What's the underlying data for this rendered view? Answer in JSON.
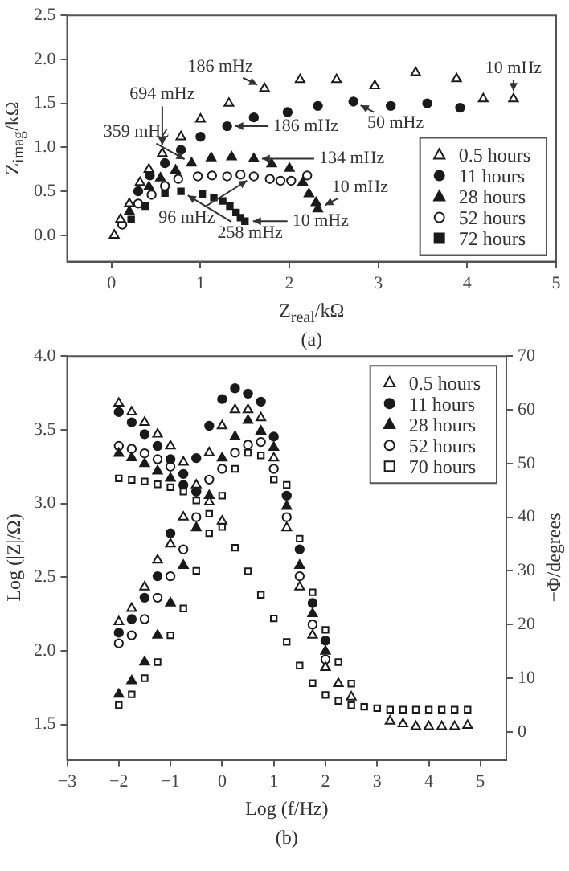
{
  "chart_data": [
    {
      "type": "scatter",
      "xlabel": "Z$_{real}$/kΩ",
      "ylabel": "Z$_{imag}$/kΩ",
      "legend": "bottom right",
      "xlim": [
        -0.5,
        5
      ],
      "xticks": [
        0,
        1,
        2,
        3,
        4,
        5
      ],
      "ylim": [
        -0.3,
        2.5
      ],
      "yticks": [
        {
          "value": 0,
          "label": "0.0"
        },
        {
          "value": 0.5,
          "label": "0.5"
        },
        {
          "value": 1,
          "label": "1.0"
        },
        {
          "value": 1.5,
          "label": "1.5"
        },
        {
          "value": 2,
          "label": "2.0"
        },
        {
          "value": 2.5,
          "label": "2.5"
        }
      ],
      "series": [
        {
          "name": "0.5 hours",
          "color": "#ffffff",
          "marker": "triangle",
          "x": [
            0.03,
            0.1,
            0.2,
            0.32,
            0.42,
            0.57,
            0.78,
            1.0,
            1.32,
            1.72,
            2.12,
            2.53,
            2.96,
            3.42,
            3.88,
            4.18,
            4.52
          ],
          "values": [
            0,
            0.18,
            0.36,
            0.6,
            0.75,
            0.93,
            1.12,
            1.32,
            1.5,
            1.67,
            1.77,
            1.77,
            1.7,
            1.85,
            1.78,
            1.55,
            1.55
          ]
        },
        {
          "name": "11 hours",
          "color": "#1a1a1a",
          "marker": "circle",
          "x": [
            0.3,
            0.43,
            0.6,
            0.78,
            1.0,
            1.3,
            1.6,
            1.98,
            2.32,
            2.72,
            3.14,
            3.55,
            3.92
          ],
          "values": [
            0.5,
            0.68,
            0.82,
            0.97,
            1.12,
            1.24,
            1.34,
            1.4,
            1.47,
            1.52,
            1.47,
            1.5,
            1.45
          ]
        },
        {
          "name": "28 hours",
          "color": "#1a1a1a",
          "marker": "triangle",
          "x": [
            0.2,
            0.42,
            0.55,
            0.72,
            0.9,
            1.12,
            1.35,
            1.6,
            1.8,
            2.0,
            2.15,
            2.22,
            2.3,
            2.32
          ],
          "values": [
            0.27,
            0.55,
            0.65,
            0.74,
            0.82,
            0.88,
            0.89,
            0.87,
            0.81,
            0.76,
            0.6,
            0.47,
            0.37,
            0.3
          ]
        },
        {
          "name": "52 hours",
          "color": "#ffffff",
          "marker": "circle",
          "x": [
            0.12,
            0.3,
            0.45,
            0.6,
            0.75,
            0.97,
            1.13,
            1.3,
            1.45,
            1.6,
            1.78,
            1.9,
            2.02,
            2.2
          ],
          "values": [
            0.12,
            0.36,
            0.46,
            0.56,
            0.64,
            0.67,
            0.68,
            0.67,
            0.69,
            0.67,
            0.64,
            0.62,
            0.62,
            0.68
          ]
        },
        {
          "name": "72 hours",
          "color": "#1a1a1a",
          "marker": "square",
          "x": [
            0.22,
            0.38,
            0.6,
            0.78,
            1.02,
            1.15,
            1.25,
            1.33,
            1.4,
            1.45,
            1.5
          ],
          "values": [
            0.18,
            0.33,
            0.48,
            0.5,
            0.47,
            0.43,
            0.39,
            0.33,
            0.26,
            0.2,
            0.16
          ]
        }
      ],
      "annotations": [
        {
          "text": "186 mHz",
          "x": 1.72,
          "y": 1.67
        },
        {
          "text": "10 mHz",
          "x": 4.52,
          "y": 1.55
        },
        {
          "text": "359 mHz",
          "x": 0.9,
          "y": 0.82
        },
        {
          "text": "694 mHz",
          "x": 0.57,
          "y": 0.93
        },
        {
          "text": "186 mHz",
          "x": 1.3,
          "y": 1.24
        },
        {
          "text": "134 mHz",
          "x": 1.6,
          "y": 0.87
        },
        {
          "text": "50 mHz",
          "x": 2.72,
          "y": 1.52
        },
        {
          "text": "96 mHz",
          "x": 1.6,
          "y": 0.67
        },
        {
          "text": "258 mHz",
          "x": 0.78,
          "y": 0.5
        },
        {
          "text": "10 mHz",
          "x": 1.5,
          "y": 0.16
        },
        {
          "text": "10 mHz",
          "x": 2.32,
          "y": 0.3
        },
        "(a)"
      ]
    },
    {
      "type": "scatter",
      "xlabel": "Log (f/Hz)",
      "ylabel": "Log (|Z|/Ω)",
      "y2label": "−Φ/degrees",
      "legend": "top right",
      "xlim": [
        -3,
        5.5
      ],
      "xticks": [
        {
          "value": -3,
          "label": "−3"
        },
        {
          "value": -2,
          "label": "−2"
        },
        {
          "value": -1,
          "label": "−1"
        },
        0,
        1,
        2,
        3,
        4,
        5
      ],
      "ylim": [
        1.26,
        4.0
      ],
      "yticks": [
        1.5,
        {
          "value": 2,
          "label": "2.0"
        },
        2.5,
        {
          "value": 3,
          "label": "3.0"
        },
        3.5,
        {
          "value": 4,
          "label": "4.0"
        }
      ],
      "y2lim": [
        -5.2,
        70
      ],
      "y2ticks": [
        0,
        10,
        20,
        30,
        40,
        50,
        60,
        70
      ],
      "x": [
        -2,
        -1.75,
        -1.5,
        -1.25,
        -1,
        -0.75,
        -0.5,
        -0.25,
        0,
        0.25,
        0.5,
        0.75,
        1,
        1.25,
        1.5,
        1.75,
        2,
        2.25,
        2.5,
        2.75,
        3,
        3.25,
        3.5,
        3.75,
        4,
        4.25,
        4.5,
        4.75
      ],
      "series": [
        {
          "name": "0.5 hours",
          "color": "#ffffff",
          "marker": "triangle",
          "values": [
            3.68,
            3.62,
            3.55,
            3.47,
            3.39,
            3.28,
            null,
            3.01,
            2.88,
            null,
            null,
            null,
            null,
            null,
            null,
            null,
            null,
            null,
            null,
            null,
            null,
            null,
            null,
            null,
            null,
            null,
            null,
            null
          ]
        },
        {
          "name": "11 hours",
          "color": "#1a1a1a",
          "marker": "circle",
          "values": [
            3.62,
            3.55,
            3.47,
            3.39,
            3.3,
            3.2,
            3.08,
            null,
            null,
            null,
            null,
            null,
            null,
            null,
            null,
            null,
            null,
            null,
            null,
            null,
            null,
            null,
            null,
            null,
            null,
            null,
            null,
            null
          ]
        },
        {
          "name": "28 hours",
          "color": "#1a1a1a",
          "marker": "triangle",
          "values": [
            3.34,
            3.31,
            3.27,
            3.22,
            3.17,
            null,
            null,
            null,
            null,
            null,
            null,
            null,
            null,
            null,
            null,
            null,
            null,
            null,
            null,
            null,
            null,
            null,
            null,
            null,
            null,
            null,
            null,
            null
          ]
        },
        {
          "name": "52 hours",
          "color": "#ffffff",
          "marker": "circle",
          "values": [
            3.39,
            3.37,
            3.34,
            3.3,
            3.25,
            null,
            null,
            null,
            null,
            null,
            null,
            null,
            null,
            null,
            null,
            null,
            null,
            null,
            null,
            null,
            null,
            null,
            null,
            null,
            null,
            null,
            null,
            null
          ]
        },
        {
          "name": "70 hours",
          "color": "#ffffff",
          "marker": "square",
          "values": [
            3.17,
            3.16,
            3.15,
            3.13,
            3.11,
            3.08,
            3.02,
            2.93,
            2.84,
            2.7,
            2.54,
            2.38,
            2.22,
            2.06,
            1.9,
            1.78,
            1.7,
            1.66,
            1.63,
            1.62,
            1.61,
            1.6,
            1.6,
            1.6,
            1.6,
            1.6,
            1.6,
            1.6
          ]
        },
        {
          "axis": "y2",
          "color": "#ffffff",
          "marker": "triangle",
          "values": [
            20.5,
            23,
            27,
            32,
            35,
            40,
            46,
            52,
            57,
            60,
            60,
            58.5,
            51,
            38,
            27,
            18,
            12,
            9,
            6.5,
            null,
            null,
            2,
            1.5,
            1,
            1,
            1,
            1,
            1.2
          ]
        },
        {
          "axis": "y2",
          "color": "#1a1a1a",
          "marker": "circle",
          "values": [
            18.5,
            21,
            25,
            29,
            37,
            46,
            51,
            57,
            62,
            64,
            63,
            61.5,
            55,
            44,
            34,
            24,
            17,
            null,
            null,
            null,
            null,
            null,
            null,
            null,
            null,
            null,
            null,
            null
          ]
        },
        {
          "axis": "y2",
          "color": "#1a1a1a",
          "marker": "triangle",
          "values": [
            7,
            9.5,
            13,
            18,
            24,
            31,
            38,
            44,
            51,
            55,
            58,
            56,
            53,
            42,
            31,
            22,
            15,
            null,
            null,
            null,
            null,
            null,
            null,
            null,
            null,
            null,
            null,
            null
          ]
        },
        {
          "axis": "y2",
          "color": "#ffffff",
          "marker": "circle",
          "values": [
            16.5,
            18,
            21,
            25,
            29,
            34,
            40,
            47,
            49,
            52,
            53.5,
            54,
            49,
            40,
            29,
            20,
            13.5,
            null,
            null,
            null,
            null,
            null,
            null,
            null,
            null,
            null,
            null,
            null
          ]
        },
        {
          "axis": "y2",
          "color": "#ffffff",
          "marker": "square",
          "values": [
            5,
            7,
            10,
            13,
            18,
            23,
            30,
            37,
            44,
            49,
            52,
            51.5,
            47,
            46,
            36,
            26,
            19,
            13,
            9,
            null,
            null,
            null,
            null,
            null,
            null,
            null,
            null,
            null
          ]
        }
      ],
      "annotations": [
        "(b)"
      ]
    }
  ]
}
